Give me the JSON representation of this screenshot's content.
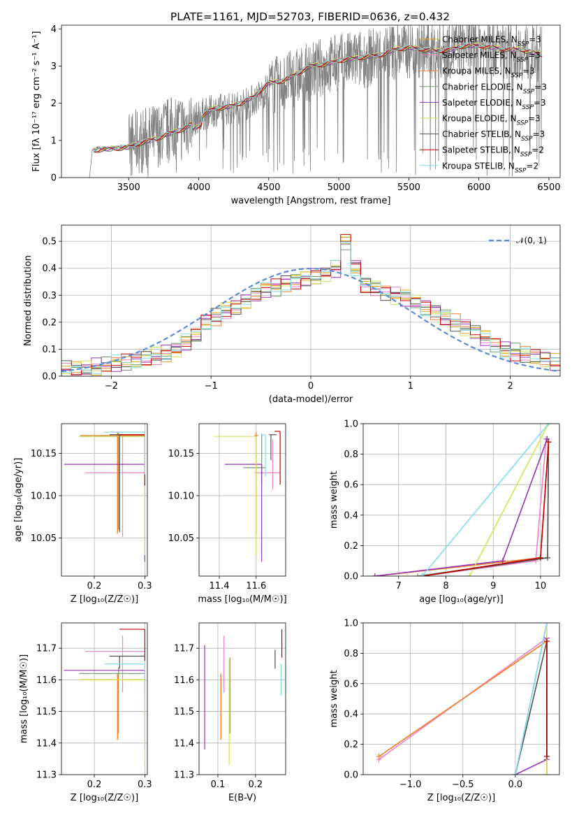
{
  "figure": {
    "title": "PLATE=1161, MJD=52703, FIBERID=0636, z=0.432"
  },
  "chart_data": [
    {
      "type": "line",
      "title": "PLATE=1161, MJD=52703, FIBERID=0636, z=0.432",
      "xlabel": "wavelength [Angstrom, rest frame]",
      "ylabel": "Flux [fλ 10⁻¹⁷ erg cm⁻² s⁻¹ A⁻¹]",
      "xlim": [
        3020,
        6580
      ],
      "ylim": [
        0,
        4.1
      ],
      "xticks": [
        3500,
        4000,
        4500,
        5000,
        5500,
        6000,
        6500
      ],
      "yticks": [
        0,
        1,
        2,
        3,
        4
      ],
      "grid": false,
      "legend_position": "top-right",
      "observed": {
        "color": "#808080",
        "x": [
          3220,
          3240,
          3260,
          3280,
          3300,
          3400,
          3500,
          3550,
          3600,
          3650,
          3700,
          3750,
          3800,
          3850,
          3900,
          3950,
          4000,
          4100,
          4200,
          4300,
          4400,
          4500,
          4600,
          4700,
          4800,
          4900,
          5000,
          5100,
          5200,
          5300,
          5400,
          5500,
          5600,
          5700,
          5800,
          5900,
          6000,
          6100,
          6200,
          6300,
          6400,
          6450
        ],
        "y": [
          0,
          0.74,
          0.76,
          0.8,
          0.78,
          0.82,
          0.85,
          0.95,
          1.0,
          1.05,
          1.15,
          1.25,
          1.3,
          1.4,
          1.4,
          1.5,
          1.65,
          1.8,
          1.85,
          1.9,
          2.1,
          2.4,
          2.55,
          2.7,
          2.85,
          3.0,
          3.1,
          3.15,
          3.2,
          3.35,
          3.4,
          3.45,
          3.45,
          3.4,
          3.45,
          3.55,
          3.55,
          3.5,
          3.45,
          3.4,
          3.35,
          3.3
        ]
      },
      "model": {
        "x": [
          3250,
          3300,
          3400,
          3500,
          3600,
          3700,
          3800,
          3900,
          4000,
          4100,
          4200,
          4300,
          4400,
          4500,
          4600,
          4700,
          4800,
          4900,
          5000,
          5100,
          5200,
          5300,
          5400,
          5500,
          5600,
          5700,
          5800,
          5900,
          6000,
          6100,
          6200,
          6300,
          6400,
          6450
        ],
        "y": [
          0.72,
          0.76,
          0.78,
          0.82,
          0.95,
          1.05,
          1.2,
          1.32,
          1.6,
          1.85,
          1.9,
          2.0,
          2.2,
          2.55,
          2.6,
          2.8,
          3.0,
          3.05,
          3.15,
          3.2,
          3.25,
          3.3,
          3.45,
          3.5,
          3.45,
          3.4,
          3.45,
          3.55,
          3.55,
          3.5,
          3.45,
          3.45,
          3.35,
          3.3
        ]
      },
      "series": [
        {
          "name": "Chabrier MILES, N_SSP=3",
          "color": "#E6A817"
        },
        {
          "name": "Salpeter MILES, N_SSP=3",
          "color": "#EE82C8"
        },
        {
          "name": "Kroupa MILES, N_SSP=3",
          "color": "#F08030"
        },
        {
          "name": "Chabrier ELODIE, N_SSP=3",
          "color": "#6E9A6E"
        },
        {
          "name": "Salpeter ELODIE, N_SSP=3",
          "color": "#9B30B8"
        },
        {
          "name": "Kroupa ELODIE, N_SSP=3",
          "color": "#D4E157"
        },
        {
          "name": "Chabrier STELIB, N_SSP=3",
          "color": "#505050"
        },
        {
          "name": "Salpeter STELIB, N_SSP=2",
          "color": "#C00000"
        },
        {
          "name": "Kroupa STELIB, N_SSP=2",
          "color": "#80DEEA"
        }
      ]
    },
    {
      "type": "line",
      "xlabel": "(data-model)/error",
      "ylabel": "Normed distribution",
      "xlim": [
        -2.5,
        2.5
      ],
      "ylim": [
        0,
        0.56
      ],
      "xticks": [
        -2,
        -1,
        0,
        1,
        2
      ],
      "yticks": [
        0.0,
        0.1,
        0.2,
        0.3,
        0.4,
        0.5
      ],
      "grid": true,
      "legend_position": "top-right",
      "reference": {
        "name": "𝒩(0, 1)",
        "color": "#5B8BD6",
        "mean": 0,
        "sigma": 1
      },
      "bin_width": 0.1,
      "bin_centers": [
        -2.45,
        -2.35,
        -2.25,
        -2.15,
        -2.05,
        -1.95,
        -1.85,
        -1.75,
        -1.65,
        -1.55,
        -1.45,
        -1.35,
        -1.25,
        -1.15,
        -1.05,
        -0.95,
        -0.85,
        -0.75,
        -0.65,
        -0.55,
        -0.45,
        -0.35,
        -0.25,
        -0.15,
        -0.05,
        0.05,
        0.15,
        0.25,
        0.35,
        0.45,
        0.55,
        0.65,
        0.75,
        0.85,
        0.95,
        1.05,
        1.15,
        1.25,
        1.35,
        1.45,
        1.55,
        1.65,
        1.75,
        1.85,
        1.95,
        2.05,
        2.15,
        2.25,
        2.35,
        2.45
      ],
      "histogram_base": [
        0.025,
        0.025,
        0.03,
        0.035,
        0.04,
        0.045,
        0.05,
        0.055,
        0.065,
        0.075,
        0.085,
        0.1,
        0.125,
        0.15,
        0.2,
        0.22,
        0.245,
        0.26,
        0.28,
        0.3,
        0.32,
        0.33,
        0.345,
        0.355,
        0.365,
        0.375,
        0.38,
        0.4,
        0.5,
        0.405,
        0.34,
        0.33,
        0.31,
        0.3,
        0.29,
        0.275,
        0.255,
        0.24,
        0.22,
        0.2,
        0.18,
        0.16,
        0.14,
        0.12,
        0.1,
        0.09,
        0.08,
        0.07,
        0.06,
        0.05
      ]
    },
    {
      "type": "scatter",
      "xlabel": "Z [log₁₀(Z/Z☉)]",
      "ylabel": "age  [log₁₀(age/yr)]",
      "xlim": [
        0.135,
        0.305
      ],
      "ylim": [
        10.005,
        10.185
      ],
      "xticks": [
        0.2,
        0.3
      ],
      "yticks": [
        10.05,
        10.1,
        10.15
      ],
      "grid": true,
      "points": [
        {
          "x": 0.246,
          "y": 10.171,
          "xerr": [
            0.074,
            0.054
          ],
          "yerr": [
            0.116,
            0.004
          ],
          "color": "#E6A817"
        },
        {
          "x": 0.256,
          "y": 10.127,
          "xerr": [
            0.074,
            0.044
          ],
          "yerr": [
            0.076,
            0.044
          ],
          "color": "#EE82C8"
        },
        {
          "x": 0.246,
          "y": 10.171,
          "xerr": [
            0.074,
            0.054
          ],
          "yerr": [
            0.116,
            0.004
          ],
          "color": "#F08030"
        },
        {
          "x": 0.248,
          "y": 10.17,
          "xerr": [
            0.078,
            0.052
          ],
          "yerr": [
            0.11,
            0.005
          ],
          "color": "#6E9A6E"
        },
        {
          "x": 0.3,
          "y": 10.137,
          "xerr": [
            0.16,
            0.0
          ],
          "yerr": [
            0.115,
            0.0
          ],
          "color": "#9B30B8"
        },
        {
          "x": 0.3,
          "y": 10.17,
          "xerr": [
            0.13,
            0.0
          ],
          "yerr": [
            0.14,
            0.0
          ],
          "color": "#D4E157"
        },
        {
          "x": 0.25,
          "y": 10.172,
          "xerr": [
            0.02,
            0.05
          ],
          "yerr": [
            0.115,
            0.0
          ],
          "color": "#505050"
        },
        {
          "x": 0.3,
          "y": 10.172,
          "xerr": [
            0.05,
            0.0
          ],
          "yerr": [
            0.06,
            0.003
          ],
          "color": "#C00000"
        },
        {
          "x": 0.3,
          "y": 10.175,
          "xerr": [
            0.08,
            0.0
          ],
          "yerr": [
            0.05,
            0.0
          ],
          "color": "#80DEEA"
        }
      ]
    },
    {
      "type": "scatter",
      "xlabel": "mass [log₁₀(M/M☉)]",
      "ylabel": "",
      "xlim": [
        11.29,
        11.76
      ],
      "ylim": [
        10.005,
        10.185
      ],
      "xticks": [
        11.4,
        11.6
      ],
      "yticks": [
        10.05,
        10.1,
        10.15
      ],
      "grid": true,
      "points": [
        {
          "x": 11.6,
          "y": 10.171,
          "xerr": [
            0.01,
            0.01
          ],
          "yerr": [
            0.116,
            0.004
          ],
          "color": "#E6A817"
        },
        {
          "x": 11.69,
          "y": 10.127,
          "xerr": [
            0.1,
            0.04
          ],
          "yerr": [
            0.02,
            0.04
          ],
          "color": "#EE82C8"
        },
        {
          "x": 11.6,
          "y": 10.171,
          "xerr": [
            0.01,
            0.01
          ],
          "yerr": [
            0.116,
            0.004
          ],
          "color": "#F08030"
        },
        {
          "x": 11.63,
          "y": 10.133,
          "xerr": [
            0.1,
            0.02
          ],
          "yerr": [
            0.02,
            0.04
          ],
          "color": "#6E9A6E"
        },
        {
          "x": 11.63,
          "y": 10.137,
          "xerr": [
            0.2,
            0.0
          ],
          "yerr": [
            0.115,
            0.0
          ],
          "color": "#9B30B8"
        },
        {
          "x": 11.6,
          "y": 10.17,
          "xerr": [
            0.23,
            0.0
          ],
          "yerr": [
            0.14,
            0.0
          ],
          "color": "#D4E157"
        },
        {
          "x": 11.68,
          "y": 10.172,
          "xerr": [
            0.01,
            0.03
          ],
          "yerr": [
            0.03,
            0.0
          ],
          "color": "#505050"
        },
        {
          "x": 11.73,
          "y": 10.176,
          "xerr": [
            0.03,
            0.0
          ],
          "yerr": [
            0.063,
            0.0
          ],
          "color": "#C00000"
        },
        {
          "x": 11.65,
          "y": 10.172,
          "xerr": [
            0.02,
            0.0
          ],
          "yerr": [
            0.05,
            0.0
          ],
          "color": "#80DEEA"
        }
      ]
    },
    {
      "type": "line",
      "xlabel": "age  [log₁₀(age/yr)]",
      "ylabel": "mass weight",
      "xlim": [
        6.25,
        10.4
      ],
      "ylim": [
        0,
        1
      ],
      "xticks": [
        7,
        8,
        9,
        10
      ],
      "yticks": [
        0.0,
        0.2,
        0.4,
        0.6,
        0.8,
        1.0
      ],
      "grid": true,
      "series": [
        {
          "color": "#E6A817",
          "x": [
            6.5,
            10.0,
            10.17
          ],
          "y": [
            0.0,
            0.12,
            0.88
          ]
        },
        {
          "color": "#EE82C8",
          "x": [
            7.5,
            9.9,
            10.12
          ],
          "y": [
            0.0,
            0.1,
            0.9
          ]
        },
        {
          "color": "#F08030",
          "x": [
            6.5,
            10.0,
            10.17
          ],
          "y": [
            0.0,
            0.12,
            0.88
          ]
        },
        {
          "color": "#6E9A6E",
          "x": [
            7.4,
            10.15,
            10.17
          ],
          "y": [
            0.0,
            0.12,
            0.88
          ]
        },
        {
          "color": "#9B30B8",
          "x": [
            6.5,
            9.2,
            10.14
          ],
          "y": [
            0.0,
            0.1,
            0.9
          ]
        },
        {
          "color": "#D4E157",
          "x": [
            8.5,
            10.17
          ],
          "y": [
            0.0,
            1.0
          ]
        },
        {
          "color": "#505050",
          "x": [
            7.5,
            10.15,
            10.17
          ],
          "y": [
            0.0,
            0.12,
            0.88
          ]
        },
        {
          "color": "#C00000",
          "x": [
            7.5,
            10.0,
            10.17
          ],
          "y": [
            0.0,
            0.12,
            0.88
          ]
        },
        {
          "color": "#80DEEA",
          "x": [
            7.5,
            10.17
          ],
          "y": [
            0.0,
            1.0
          ]
        }
      ]
    },
    {
      "type": "scatter",
      "xlabel": "Z [log₁₀(Z/Z☉)]",
      "ylabel": "mass [log₁₀(M/M☉)]",
      "xlim": [
        0.135,
        0.305
      ],
      "ylim": [
        11.3,
        11.78
      ],
      "xticks": [
        0.2,
        0.3
      ],
      "yticks": [
        11.3,
        11.4,
        11.5,
        11.6,
        11.7
      ],
      "grid": true,
      "points": [
        {
          "x": 0.246,
          "y": 11.6,
          "xerr": [
            0.074,
            0.054
          ],
          "yerr": [
            0.19,
            0.02
          ],
          "color": "#E6A817"
        },
        {
          "x": 0.256,
          "y": 11.69,
          "xerr": [
            0.074,
            0.044
          ],
          "yerr": [
            0.13,
            0.05
          ],
          "color": "#EE82C8"
        },
        {
          "x": 0.246,
          "y": 11.6,
          "xerr": [
            0.074,
            0.054
          ],
          "yerr": [
            0.19,
            0.02
          ],
          "color": "#F08030"
        },
        {
          "x": 0.248,
          "y": 11.62,
          "xerr": [
            0.078,
            0.052
          ],
          "yerr": [
            0.19,
            0.02
          ],
          "color": "#6E9A6E"
        },
        {
          "x": 0.3,
          "y": 11.63,
          "xerr": [
            0.16,
            0.0
          ],
          "yerr": [
            0.25,
            0.0
          ],
          "color": "#9B30B8"
        },
        {
          "x": 0.3,
          "y": 11.6,
          "xerr": [
            0.13,
            0.0
          ],
          "yerr": [
            0.27,
            0.0
          ],
          "color": "#D4E157"
        },
        {
          "x": 0.25,
          "y": 11.675,
          "xerr": [
            0.02,
            0.05
          ],
          "yerr": [
            0.04,
            0.0
          ],
          "color": "#505050"
        },
        {
          "x": 0.3,
          "y": 11.76,
          "xerr": [
            0.05,
            0.0
          ],
          "yerr": [
            0.1,
            0.0
          ],
          "color": "#C00000"
        },
        {
          "x": 0.3,
          "y": 11.65,
          "xerr": [
            0.08,
            0.0
          ],
          "yerr": [
            0.1,
            0.0
          ],
          "color": "#80DEEA"
        }
      ]
    },
    {
      "type": "scatter",
      "xlabel": "E(B-V)",
      "ylabel": "",
      "xlim": [
        0.05,
        0.28
      ],
      "ylim": [
        11.3,
        11.78
      ],
      "xticks": [
        0.1,
        0.2
      ],
      "yticks": [
        11.3,
        11.4,
        11.5,
        11.6,
        11.7
      ],
      "grid": true,
      "points": [
        {
          "x": 0.108,
          "y": 11.6,
          "yerr": [
            0.19,
            0.02
          ],
          "color": "#E6A817"
        },
        {
          "x": 0.116,
          "y": 11.69,
          "yerr": [
            0.13,
            0.05
          ],
          "color": "#EE82C8"
        },
        {
          "x": 0.108,
          "y": 11.6,
          "yerr": [
            0.19,
            0.02
          ],
          "color": "#F08030"
        },
        {
          "x": 0.132,
          "y": 11.62,
          "yerr": [
            0.19,
            0.05
          ],
          "color": "#6E9A6E"
        },
        {
          "x": 0.065,
          "y": 11.63,
          "yerr": [
            0.25,
            0.08
          ],
          "color": "#9B30B8"
        },
        {
          "x": 0.13,
          "y": 11.6,
          "yerr": [
            0.27,
            0.07
          ],
          "color": "#D4E157"
        },
        {
          "x": 0.252,
          "y": 11.675,
          "yerr": [
            0.04,
            0.02
          ],
          "color": "#505050"
        },
        {
          "x": 0.27,
          "y": 11.72,
          "yerr": [
            0.05,
            0.04
          ],
          "color": "#C00000"
        },
        {
          "x": 0.268,
          "y": 11.6,
          "yerr": [
            0.05,
            0.05
          ],
          "color": "#80DEEA"
        }
      ]
    },
    {
      "type": "line",
      "xlabel": "Z [log₁₀(Z/Z☉)]",
      "ylabel": "mass weight",
      "xlim": [
        -1.45,
        0.42
      ],
      "ylim": [
        0,
        1
      ],
      "xticks": [
        -1.0,
        -0.5,
        0.0
      ],
      "yticks": [
        0.0,
        0.2,
        0.4,
        0.6,
        0.8,
        1.0
      ],
      "grid": true,
      "series": [
        {
          "color": "#E6A817",
          "x": [
            -1.3,
            0.3,
            0.3
          ],
          "y": [
            0.12,
            0.88,
            0.0
          ]
        },
        {
          "color": "#EE82C8",
          "x": [
            -1.3,
            0.3
          ],
          "y": [
            0.1,
            0.9
          ]
        },
        {
          "color": "#F08030",
          "x": [
            -1.3,
            0.3,
            0.3
          ],
          "y": [
            0.12,
            0.88,
            0.0
          ]
        },
        {
          "color": "#6E9A6E",
          "x": [
            0.0,
            0.3
          ],
          "y": [
            0.0,
            1.0
          ]
        },
        {
          "color": "#9B30B8",
          "x": [
            0.0,
            0.3,
            0.3
          ],
          "y": [
            0.0,
            0.1,
            0.9
          ]
        },
        {
          "color": "#D4E157",
          "x": [
            0.3,
            0.3
          ],
          "y": [
            0.0,
            1.0
          ]
        },
        {
          "color": "#505050",
          "x": [
            0.0,
            0.3,
            0.3
          ],
          "y": [
            0.0,
            0.88,
            0.12
          ]
        },
        {
          "color": "#C00000",
          "x": [
            0.3,
            0.3
          ],
          "y": [
            0.12,
            0.88
          ]
        },
        {
          "color": "#80DEEA",
          "x": [
            0.0,
            0.3
          ],
          "y": [
            0.0,
            1.0
          ]
        }
      ]
    }
  ]
}
